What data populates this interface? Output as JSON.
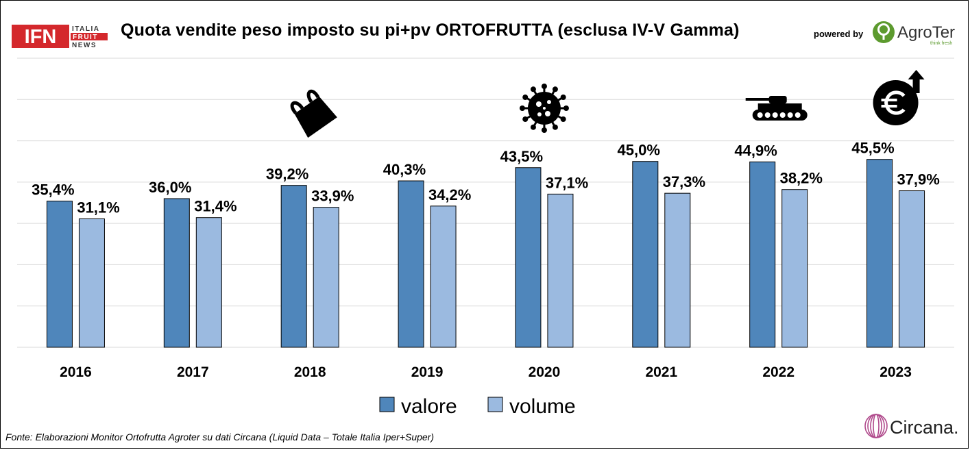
{
  "header": {
    "title": "Quota vendite peso imposto su pi+pv ORTOFRUTTA (esclusa IV-V Gamma)",
    "powered_by": "powered by",
    "ifn_logo": {
      "main": "IFN",
      "line1": "ITALIA",
      "line2": "FRUIT",
      "line3": "NEWS"
    },
    "agroter_logo": {
      "name": "AgroTer",
      "tagline": "think fresh"
    }
  },
  "footer": {
    "source": "Fonte: Elaborazioni Monitor Ortofrutta Agroter su dati  Circana (Liquid Data – Totale Italia Iper+Super)",
    "circana_logo": "Circana."
  },
  "colors": {
    "valore": "#4f86bb",
    "volume": "#9bbae0",
    "grid": "#d9d9d9"
  },
  "chart_data": {
    "type": "bar",
    "title": "Quota vendite peso imposto su pi+pv ORTOFRUTTA (esclusa IV-V Gamma)",
    "categories": [
      "2016",
      "2017",
      "2018",
      "2019",
      "2020",
      "2021",
      "2022",
      "2023"
    ],
    "series": [
      {
        "name": "valore",
        "values": [
          35.4,
          36.0,
          39.2,
          40.3,
          43.5,
          45.0,
          44.9,
          45.5
        ],
        "labels": [
          "35,4%",
          "36,0%",
          "39,2%",
          "40,3%",
          "43,5%",
          "45,0%",
          "44,9%",
          "45,5%"
        ]
      },
      {
        "name": "volume",
        "values": [
          31.1,
          31.4,
          33.9,
          34.2,
          37.1,
          37.3,
          38.2,
          37.9
        ],
        "labels": [
          "31,1%",
          "31,4%",
          "33,9%",
          "34,2%",
          "37,1%",
          "37,3%",
          "38,2%",
          "37,9%"
        ]
      }
    ],
    "ylim": [
      0,
      70
    ],
    "grid": true,
    "legend": "bottom-center",
    "annotations": [
      {
        "year": "2018",
        "icon": "plastic-bag-icon"
      },
      {
        "year": "2020",
        "icon": "virus-icon"
      },
      {
        "year": "2022",
        "icon": "tank-icon"
      },
      {
        "year": "2023",
        "icon": "euro-up-icon"
      }
    ]
  }
}
